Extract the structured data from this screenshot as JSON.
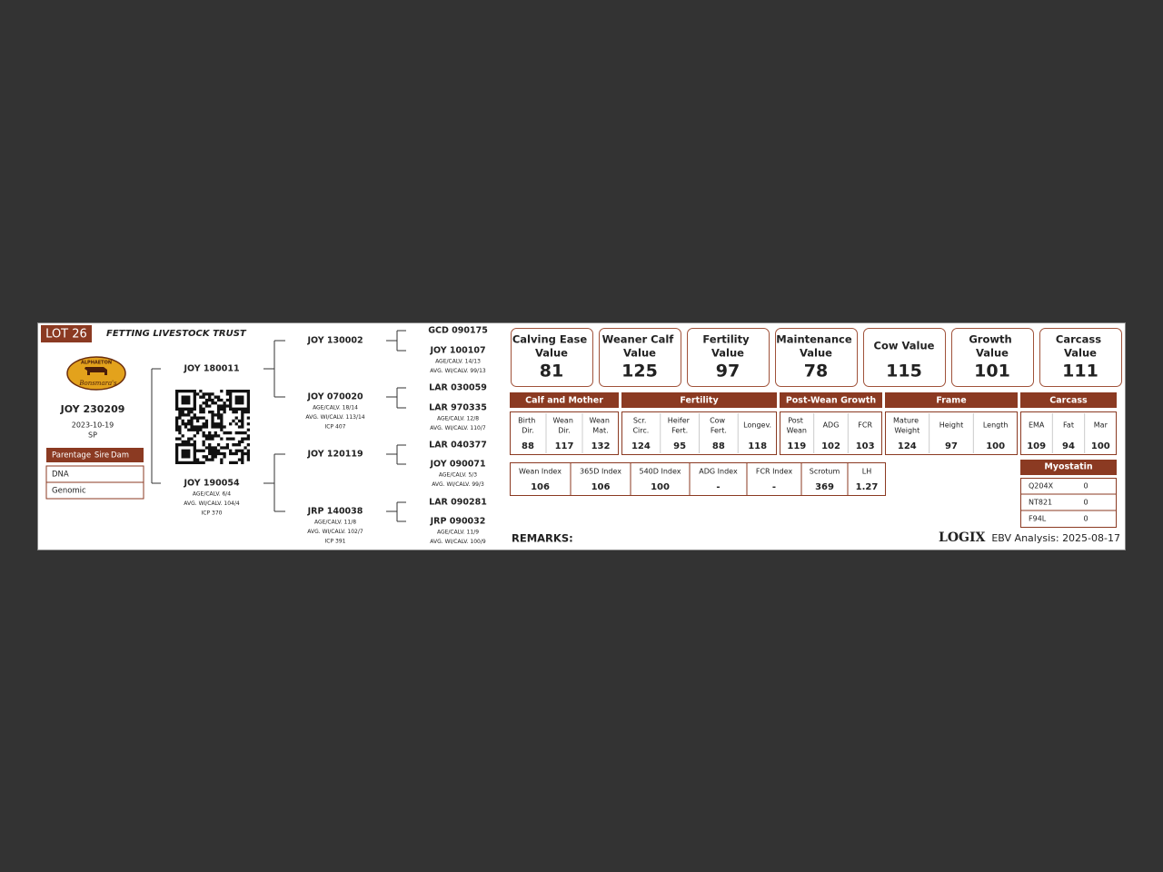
{
  "lot": "LOT 26",
  "owner": "FETTING LIVESTOCK TRUST",
  "logo": {
    "top": "ALPHAETON",
    "bottom": "Bonsmara's"
  },
  "animal": {
    "id": "JOY 230209",
    "birth_date": "2023-10-19",
    "type": "SP"
  },
  "parentage": {
    "header": [
      "Parentage",
      "Sire",
      "Dam"
    ],
    "rows": [
      "DNA",
      "Genomic"
    ]
  },
  "pedigree": {
    "sire": {
      "id": "JOY 180011"
    },
    "dam": {
      "id": "JOY 190054",
      "details": [
        "AGE/CALV. 6/4",
        "AVG. WI/CALV. 104/4",
        "ICP 370"
      ]
    },
    "grandparents": [
      {
        "id": "JOY 130002"
      },
      {
        "id": "JOY 070020",
        "details": [
          "AGE/CALV. 18/14",
          "AVG. WI/CALV. 113/14",
          "ICP 407"
        ]
      },
      {
        "id": "JOY 120119"
      },
      {
        "id": "JRP 140038",
        "details": [
          "AGE/CALV. 11/8",
          "AVG. WI/CALV. 102/7",
          "ICP 391"
        ]
      }
    ],
    "great_grandparents": [
      {
        "id": "GCD 090175"
      },
      {
        "id": "JOY 100107",
        "details": [
          "AGE/CALV. 14/13",
          "AVG. WI/CALV. 99/13"
        ]
      },
      {
        "id": "LAR 030059"
      },
      {
        "id": "LAR 970335",
        "details": [
          "AGE/CALV. 12/8",
          "AVG. WI/CALV. 110/7"
        ]
      },
      {
        "id": "LAR 040377"
      },
      {
        "id": "JOY 090071",
        "details": [
          "AGE/CALV. 5/3",
          "AVG. WI/CALV. 99/3"
        ]
      },
      {
        "id": "LAR 090281"
      },
      {
        "id": "JRP 090032",
        "details": [
          "AGE/CALV. 11/9",
          "AVG. WI/CALV. 100/9"
        ]
      }
    ]
  },
  "value_cards": [
    {
      "title": "Calving Ease Value",
      "value": 81
    },
    {
      "title": "Weaner Calf Value",
      "value": 125
    },
    {
      "title": "Fertility Value",
      "value": 97
    },
    {
      "title": "Maintenance Value",
      "value": 78
    },
    {
      "title": "Cow Value",
      "value": 115
    },
    {
      "title": "Growth Value",
      "value": 101
    },
    {
      "title": "Carcass Value",
      "value": 111
    }
  ],
  "ebv_groups": [
    {
      "name": "Calf and Mother",
      "traits": [
        {
          "label": "Birth Dir.",
          "value": 88
        },
        {
          "label": "Wean Dir.",
          "value": 117
        },
        {
          "label": "Wean Mat.",
          "value": 132
        }
      ]
    },
    {
      "name": "Fertility",
      "traits": [
        {
          "label": "Scr. Circ.",
          "value": 124
        },
        {
          "label": "Heifer Fert.",
          "value": 95
        },
        {
          "label": "Cow Fert.",
          "value": 88
        },
        {
          "label": "Longev.",
          "value": 118
        }
      ]
    },
    {
      "name": "Post-Wean Growth",
      "traits": [
        {
          "label": "Post Wean",
          "value": 119
        },
        {
          "label": "ADG",
          "value": 102
        },
        {
          "label": "FCR",
          "value": 103
        }
      ]
    },
    {
      "name": "Frame",
      "traits": [
        {
          "label": "Mature Weight",
          "value": 124
        },
        {
          "label": "Height",
          "value": 97
        },
        {
          "label": "Length",
          "value": 100
        }
      ]
    },
    {
      "name": "Carcass",
      "traits": [
        {
          "label": "EMA",
          "value": 109
        },
        {
          "label": "Fat",
          "value": 94
        },
        {
          "label": "Mar",
          "value": 100
        }
      ]
    }
  ],
  "indexes": [
    {
      "label": "Wean Index",
      "value": 106
    },
    {
      "label": "365D Index",
      "value": 106
    },
    {
      "label": "540D Index",
      "value": 100
    },
    {
      "label": "ADG Index",
      "value": "-"
    },
    {
      "label": "FCR Index",
      "value": "-"
    },
    {
      "label": "Scrotum",
      "value": 369
    },
    {
      "label": "LH",
      "value": 1.27
    }
  ],
  "myostatin": {
    "title": "Myostatin",
    "rows": [
      [
        "Q204X",
        0
      ],
      [
        "NT821",
        0
      ],
      [
        "F94L",
        0
      ]
    ]
  },
  "remarks": "REMARKS:",
  "brand": "LOGIX",
  "analysis": "EBV Analysis: 2025-08-17"
}
